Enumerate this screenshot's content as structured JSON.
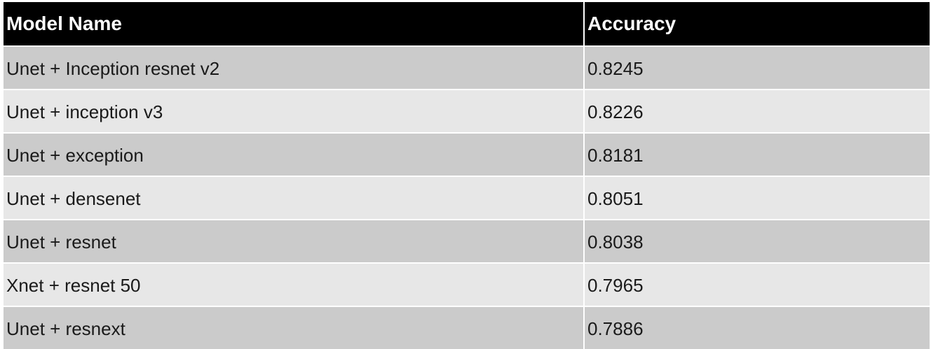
{
  "chart_data": {
    "type": "table",
    "columns": [
      "Model Name",
      "Accuracy"
    ],
    "rows": [
      [
        "Unet + Inception resnet v2",
        "0.8245"
      ],
      [
        "Unet + inception v3",
        "0.8226"
      ],
      [
        "Unet + exception",
        "0.8181"
      ],
      [
        "Unet + densenet",
        "0.8051"
      ],
      [
        "Unet + resnet",
        "0.8038"
      ],
      [
        "Xnet + resnet 50",
        "0.7965"
      ],
      [
        "Unet + resnext",
        "0.7886"
      ]
    ]
  },
  "colors": {
    "header_bg": "#000000",
    "header_text": "#ffffff",
    "row_odd": "#cbcbcb",
    "row_even": "#e7e7e7"
  }
}
